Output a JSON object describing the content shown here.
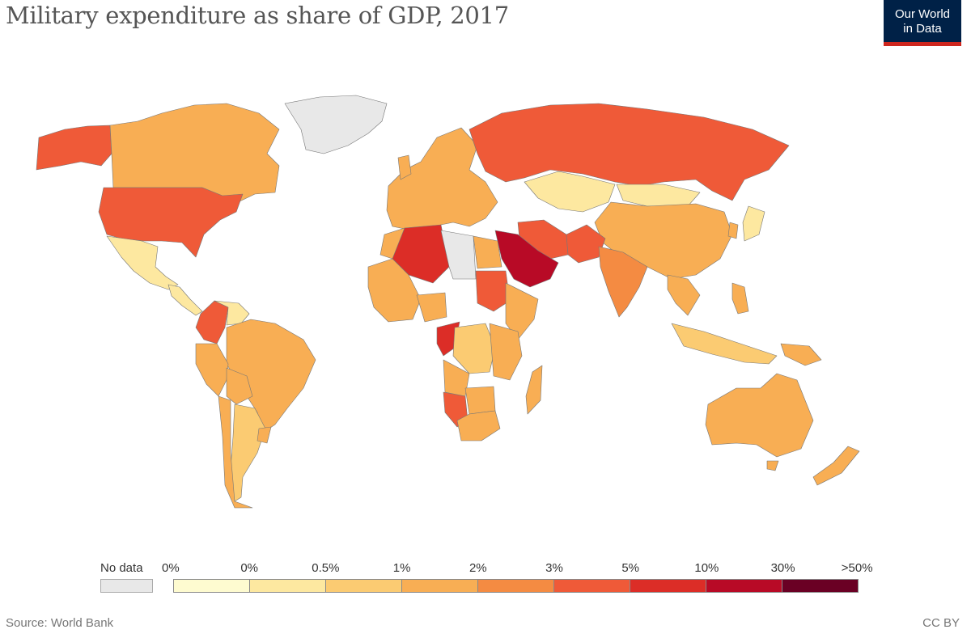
{
  "title": "Military expenditure as share of GDP, 2017",
  "logo": {
    "line1": "Our World",
    "line2": "in Data"
  },
  "legend": {
    "no_data_label": "No data",
    "no_data_color": "#e8e8e8",
    "tick_labels": [
      "0%",
      "0%",
      "0.5%",
      "1%",
      "2%",
      "3%",
      "5%",
      "10%",
      "30%",
      ">50%"
    ],
    "colors": [
      "#fefbd0",
      "#fde8a0",
      "#fbcb72",
      "#f8ae54",
      "#f48b42",
      "#ef5a38",
      "#dc2d27",
      "#b80a26",
      "#6a0024"
    ]
  },
  "footer": {
    "source": "Source: World Bank",
    "license": "CC BY"
  },
  "map_regions": [
    {
      "name": "greenland",
      "color": "#e8e8e8"
    },
    {
      "name": "canada",
      "color": "#f8ae54"
    },
    {
      "name": "alaska",
      "color": "#ef5a38"
    },
    {
      "name": "united-states",
      "color": "#ef5a38"
    },
    {
      "name": "mexico",
      "color": "#fde8a0"
    },
    {
      "name": "central-america",
      "color": "#fde8a0"
    },
    {
      "name": "colombia",
      "color": "#ef5a38"
    },
    {
      "name": "venezuela",
      "color": "#fde8a0"
    },
    {
      "name": "brazil",
      "color": "#f8ae54"
    },
    {
      "name": "peru",
      "color": "#f8ae54"
    },
    {
      "name": "bolivia",
      "color": "#f8ae54"
    },
    {
      "name": "argentina",
      "color": "#fbcb72"
    },
    {
      "name": "chile",
      "color": "#f8ae54"
    },
    {
      "name": "russia",
      "color": "#ef5a38"
    },
    {
      "name": "europe",
      "color": "#f8ae54"
    },
    {
      "name": "kazakhstan",
      "color": "#fde8a0"
    },
    {
      "name": "mongolia",
      "color": "#fde8a0"
    },
    {
      "name": "china",
      "color": "#f8ae54"
    },
    {
      "name": "india",
      "color": "#f48b42"
    },
    {
      "name": "pakistan",
      "color": "#ef5a38"
    },
    {
      "name": "iran",
      "color": "#ef5a38"
    },
    {
      "name": "saudi-arabia",
      "color": "#b80a26"
    },
    {
      "name": "algeria",
      "color": "#dc2d27"
    },
    {
      "name": "libya",
      "color": "#e8e8e8"
    },
    {
      "name": "egypt",
      "color": "#f8ae54"
    },
    {
      "name": "sudan",
      "color": "#ef5a38"
    },
    {
      "name": "congo",
      "color": "#dc2d27"
    },
    {
      "name": "drc",
      "color": "#fbcb72"
    },
    {
      "name": "namibia",
      "color": "#ef5a38"
    },
    {
      "name": "south-africa",
      "color": "#f8ae54"
    },
    {
      "name": "australia",
      "color": "#f8ae54"
    },
    {
      "name": "new-zealand",
      "color": "#f8ae54"
    },
    {
      "name": "indonesia",
      "color": "#fbcb72"
    },
    {
      "name": "japan",
      "color": "#fde8a0"
    }
  ]
}
